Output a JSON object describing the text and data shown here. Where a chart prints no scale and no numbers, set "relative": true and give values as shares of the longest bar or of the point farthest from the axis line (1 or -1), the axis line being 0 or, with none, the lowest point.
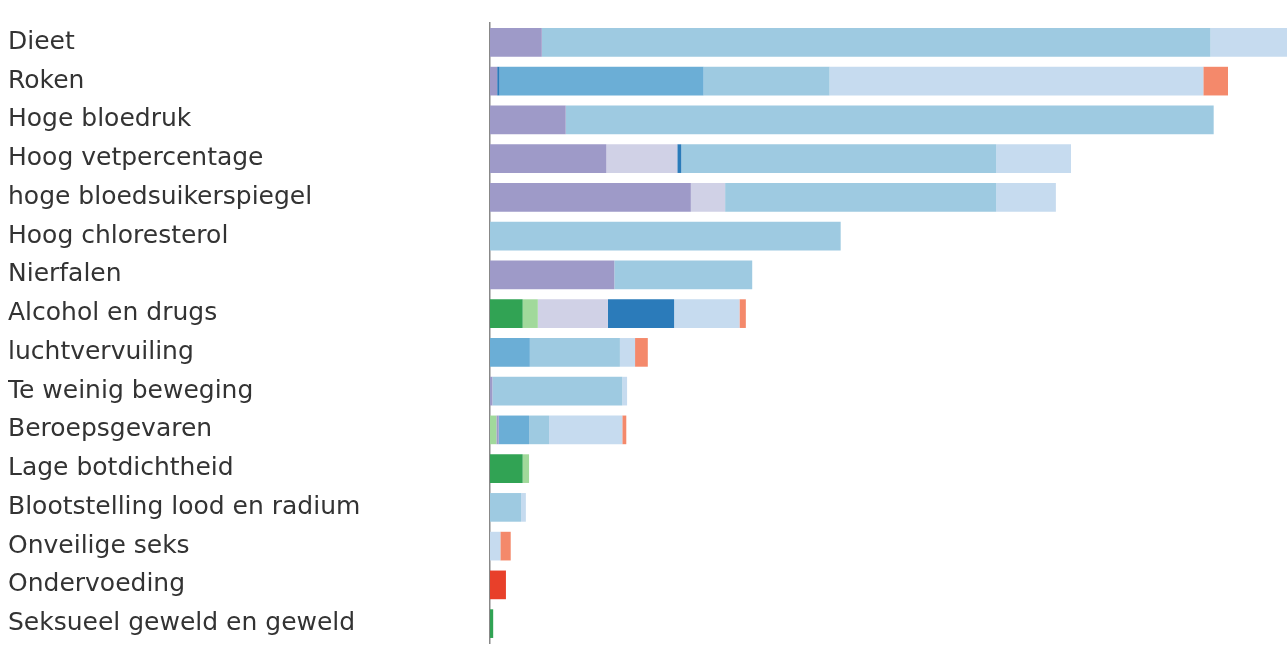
{
  "chart_data": {
    "type": "bar",
    "orientation": "horizontal",
    "stacked": true,
    "relative": true,
    "legend": false,
    "grid": false,
    "categories": [
      "Dieet",
      "Roken",
      "Hoge bloedruk",
      "Hoog vetpercentage",
      "hoge bloedsuikerspiegel",
      "Hoog chloresterol",
      "Nierfalen",
      "Alcohol en drugs",
      "luchtvervuiling",
      "Te weinig beweging",
      "Beroepsgevaren",
      "Lage botdichtheid",
      "Blootstelling lood en radium",
      "Onveilige seks",
      "Ondervoeding",
      "Seksueel geweld en geweld"
    ],
    "series": [
      {
        "color": "#31a354",
        "values": [
          null,
          null,
          null,
          null,
          null,
          null,
          null,
          0.041,
          null,
          null,
          null,
          0.041,
          null,
          null,
          null,
          0.004
        ]
      },
      {
        "color": "#a1d99b",
        "values": [
          null,
          null,
          null,
          null,
          null,
          null,
          null,
          0.019,
          null,
          null,
          0.008,
          0.008,
          null,
          null,
          null,
          null
        ]
      },
      {
        "color": "#9e9ac8",
        "values": [
          0.065,
          0.009,
          0.095,
          0.146,
          0.252,
          null,
          0.156,
          null,
          null,
          0.003,
          0.003,
          null,
          null,
          null,
          null,
          null
        ]
      },
      {
        "color": "#d0d1e6",
        "values": [
          null,
          null,
          null,
          0.089,
          0.043,
          null,
          null,
          0.088,
          null,
          null,
          null,
          null,
          null,
          null,
          null,
          null
        ]
      },
      {
        "color": "#2b7bba",
        "values": [
          null,
          0.003,
          null,
          0.005,
          null,
          null,
          null,
          0.083,
          null,
          null,
          null,
          null,
          null,
          null,
          null,
          null
        ]
      },
      {
        "color": "#6baed6",
        "values": [
          null,
          0.256,
          null,
          null,
          null,
          null,
          null,
          null,
          0.05,
          null,
          0.038,
          null,
          null,
          null,
          null,
          null
        ]
      },
      {
        "color": "#9ecae1",
        "values": [
          0.839,
          0.158,
          0.813,
          0.395,
          0.34,
          0.44,
          0.173,
          null,
          0.113,
          0.163,
          0.025,
          null,
          0.039,
          null,
          null,
          null
        ]
      },
      {
        "color": "#c6dbef",
        "values": [
          0.096,
          0.469,
          null,
          0.094,
          0.075,
          null,
          null,
          0.082,
          0.019,
          0.006,
          0.092,
          null,
          0.006,
          0.013,
          null,
          null
        ]
      },
      {
        "color": "#f4896b",
        "values": [
          null,
          0.031,
          null,
          null,
          null,
          null,
          null,
          0.008,
          0.016,
          null,
          0.005,
          null,
          null,
          0.013,
          null,
          null
        ]
      },
      {
        "color": "#e8402a",
        "values": [
          null,
          null,
          null,
          null,
          null,
          null,
          null,
          null,
          null,
          null,
          null,
          null,
          null,
          null,
          0.02,
          null
        ]
      }
    ]
  }
}
